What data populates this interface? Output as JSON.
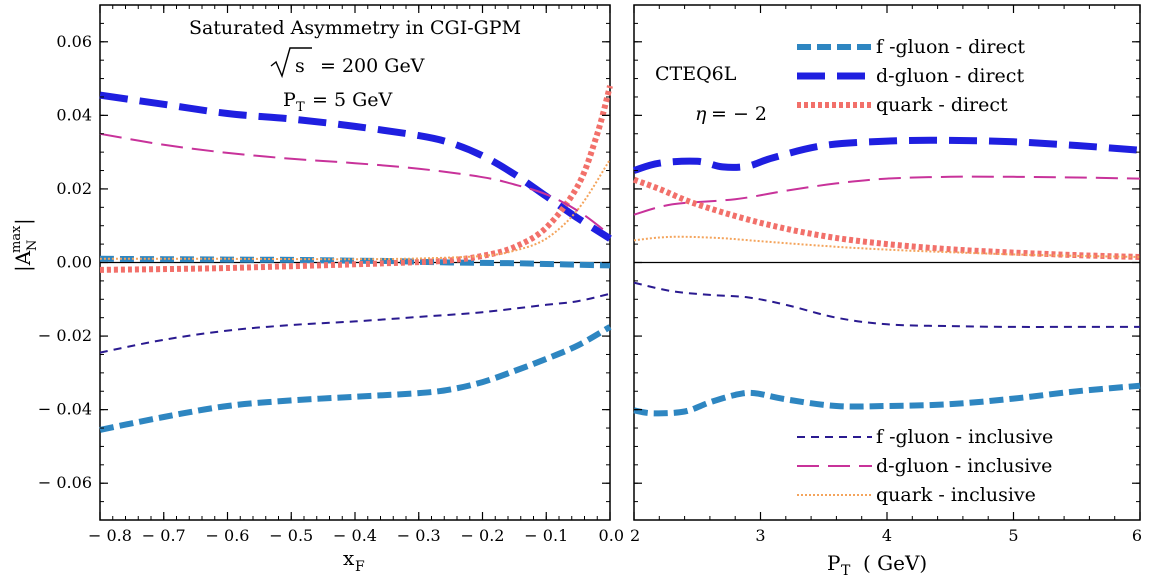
{
  "chart_data": [
    {
      "type": "line",
      "panel": "left",
      "title_lines": [
        "Saturated Asymmetry in CGI-GPM",
        "= 200 GeV",
        "P",
        "T",
        "= 5 GeV"
      ],
      "sqrt_label": "s",
      "xlabel": "x",
      "xlabel_sub": "F",
      "ylabel_main": "|A",
      "ylabel_sub": "N",
      "ylabel_sup": "max",
      "ylabel_close": "|",
      "xlim": [
        -0.8,
        0.0
      ],
      "ylim": [
        -0.07,
        0.07
      ],
      "xticks": [
        -0.8,
        -0.7,
        -0.6,
        -0.5,
        -0.4,
        -0.3,
        -0.2,
        -0.1,
        0.0
      ],
      "xtick_labels": [
        "− 0.8",
        "− 0.7",
        "− 0.6",
        "− 0.5",
        "− 0.4",
        "− 0.3",
        "− 0.2",
        "− 0.1",
        "0.0"
      ],
      "yticks": [
        -0.06,
        -0.04,
        -0.02,
        0.0,
        0.02,
        0.04,
        0.06
      ],
      "ytick_labels": [
        "− 0.06",
        "− 0.04",
        "− 0.02",
        "0.00",
        "0.02",
        "0.04",
        "0.06"
      ],
      "series": [
        {
          "key": "f-direct",
          "x": [
            -0.8,
            -0.7,
            -0.6,
            -0.5,
            -0.4,
            -0.35,
            -0.3,
            -0.25,
            -0.2,
            -0.15,
            -0.1,
            -0.05,
            0.0
          ],
          "y": [
            0.001,
            0.0009,
            0.0008,
            0.0007,
            0.0005,
            0.0004,
            0.0002,
            0.0,
            -0.0001,
            -0.0002,
            -0.0004,
            -0.0006,
            -0.0008
          ]
        },
        {
          "key": "d-direct",
          "x": [
            -0.8,
            -0.7,
            -0.6,
            -0.5,
            -0.4,
            -0.3,
            -0.25,
            -0.2,
            -0.15,
            -0.1,
            -0.05,
            0.0
          ],
          "y": [
            0.0455,
            0.043,
            0.0405,
            0.039,
            0.037,
            0.0345,
            0.0325,
            0.029,
            0.024,
            0.018,
            0.012,
            0.0065
          ]
        },
        {
          "key": "q-direct",
          "x": [
            -0.8,
            -0.7,
            -0.6,
            -0.5,
            -0.4,
            -0.35,
            -0.3,
            -0.25,
            -0.2,
            -0.15,
            -0.1,
            -0.05,
            -0.02,
            0.0
          ],
          "y": [
            -0.002,
            -0.0018,
            -0.0015,
            -0.001,
            -0.0005,
            -0.0002,
            0.0001,
            0.0006,
            0.0018,
            0.0042,
            0.0095,
            0.021,
            0.035,
            0.048
          ]
        },
        {
          "key": "f-incl",
          "x": [
            -0.8,
            -0.7,
            -0.6,
            -0.5,
            -0.4,
            -0.3,
            -0.2,
            -0.1,
            -0.05,
            0.0
          ],
          "y": [
            -0.0245,
            -0.021,
            -0.0185,
            -0.017,
            -0.016,
            -0.0148,
            -0.0135,
            -0.0115,
            -0.0105,
            -0.0085
          ]
        },
        {
          "key": "d-incl",
          "x": [
            -0.8,
            -0.7,
            -0.6,
            -0.5,
            -0.4,
            -0.3,
            -0.2,
            -0.15,
            -0.1,
            -0.05,
            0.0
          ],
          "y": [
            0.035,
            0.032,
            0.0298,
            0.0282,
            0.027,
            0.0255,
            0.0232,
            0.0212,
            0.0185,
            0.014,
            0.0075
          ]
        },
        {
          "key": "q-incl",
          "x": [
            -0.8,
            -0.6,
            -0.4,
            -0.3,
            -0.2,
            -0.15,
            -0.1,
            -0.05,
            0.0
          ],
          "y": [
            0.001,
            0.001,
            0.0009,
            0.0011,
            0.0018,
            0.0032,
            0.0065,
            0.0145,
            0.028
          ]
        },
        {
          "key": "f-direct-neg",
          "x": [
            -0.8,
            -0.7,
            -0.6,
            -0.5,
            -0.4,
            -0.3,
            -0.25,
            -0.2,
            -0.15,
            -0.1,
            -0.05,
            0.0
          ],
          "y": [
            -0.0455,
            -0.042,
            -0.039,
            -0.0375,
            -0.0365,
            -0.0355,
            -0.0345,
            -0.0325,
            -0.0295,
            -0.0262,
            -0.0225,
            -0.0175
          ]
        }
      ]
    },
    {
      "type": "line",
      "panel": "right",
      "annotations": [
        "CTEQ6L",
        "η",
        "= − 2"
      ],
      "xlabel": "P",
      "xlabel_sub": "T",
      "xlabel_unit": "( GeV)",
      "xlim": [
        2,
        6
      ],
      "ylim": [
        -0.07,
        0.07
      ],
      "xticks": [
        2,
        3,
        4,
        5,
        6
      ],
      "xtick_labels": [
        "2",
        "3",
        "4",
        "5",
        "6"
      ],
      "series": [
        {
          "key": "d-direct",
          "x": [
            2.0,
            2.2,
            2.5,
            2.7,
            2.9,
            3.1,
            3.5,
            4.0,
            4.5,
            5.0,
            5.5,
            6.0
          ],
          "y": [
            0.025,
            0.027,
            0.0275,
            0.026,
            0.0262,
            0.0285,
            0.0318,
            0.033,
            0.0332,
            0.0328,
            0.0318,
            0.0305
          ]
        },
        {
          "key": "d-incl",
          "x": [
            2.0,
            2.3,
            2.8,
            3.2,
            3.6,
            4.0,
            4.5,
            5.0,
            5.5,
            6.0
          ],
          "y": [
            0.013,
            0.0158,
            0.0172,
            0.0195,
            0.0215,
            0.0228,
            0.0233,
            0.0233,
            0.0231,
            0.0228
          ]
        },
        {
          "key": "q-direct",
          "x": [
            2.0,
            2.2,
            2.5,
            3.0,
            3.5,
            4.0,
            4.5,
            5.0,
            5.5,
            6.0
          ],
          "y": [
            0.0225,
            0.02,
            0.0158,
            0.0108,
            0.0072,
            0.005,
            0.0036,
            0.0027,
            0.002,
            0.0015
          ]
        },
        {
          "key": "q-incl",
          "x": [
            2.0,
            2.2,
            2.4,
            2.7,
            3.0,
            3.5,
            4.0,
            4.5,
            5.0,
            5.5,
            6.0
          ],
          "y": [
            0.006,
            0.0068,
            0.007,
            0.0066,
            0.0058,
            0.0045,
            0.0035,
            0.0028,
            0.0022,
            0.0018,
            0.0015
          ]
        },
        {
          "key": "f-incl",
          "x": [
            2.0,
            2.3,
            2.6,
            2.9,
            3.2,
            3.6,
            4.0,
            4.5,
            5.0,
            5.5,
            6.0
          ],
          "y": [
            -0.0055,
            -0.0078,
            -0.0088,
            -0.0095,
            -0.0115,
            -0.015,
            -0.0168,
            -0.0173,
            -0.0175,
            -0.0175,
            -0.0175
          ]
        },
        {
          "key": "f-direct",
          "x": [
            2.0,
            2.15,
            2.4,
            2.6,
            2.8,
            2.95,
            3.2,
            3.6,
            4.0,
            4.5,
            5.0,
            5.5,
            6.0
          ],
          "y": [
            -0.0402,
            -0.041,
            -0.0405,
            -0.038,
            -0.036,
            -0.0355,
            -0.0372,
            -0.039,
            -0.039,
            -0.0385,
            -0.037,
            -0.035,
            -0.0335
          ]
        }
      ]
    }
  ],
  "styles": {
    "f-direct": {
      "color": "#2e86c1",
      "width": 6,
      "dash": "14,6"
    },
    "d-direct": {
      "color": "#1f1fe0",
      "width": 7,
      "dash": "28,12"
    },
    "q-direct": {
      "color": "#f2706a",
      "width": 6,
      "dash": "4,3"
    },
    "f-incl": {
      "color": "#2a1a90",
      "width": 2,
      "dash": "8,6"
    },
    "d-incl": {
      "color": "#c8329a",
      "width": 2,
      "dash": "22,9"
    },
    "q-incl": {
      "color": "#f4a45c",
      "width": 2,
      "dash": "2,2"
    },
    "f-direct-neg": {
      "color": "#2e86c1",
      "width": 6,
      "dash": "14,6"
    }
  },
  "legend_top": [
    {
      "key": "f-direct",
      "label": "f -gluon - direct"
    },
    {
      "key": "d-direct",
      "label": "d-gluon - direct"
    },
    {
      "key": "q-direct",
      "label": "quark - direct"
    }
  ],
  "legend_bottom": [
    {
      "key": "f-incl",
      "label": "f -gluon - inclusive"
    },
    {
      "key": "d-incl",
      "label": "d-gluon - inclusive"
    },
    {
      "key": "q-incl",
      "label": "quark - inclusive"
    }
  ]
}
